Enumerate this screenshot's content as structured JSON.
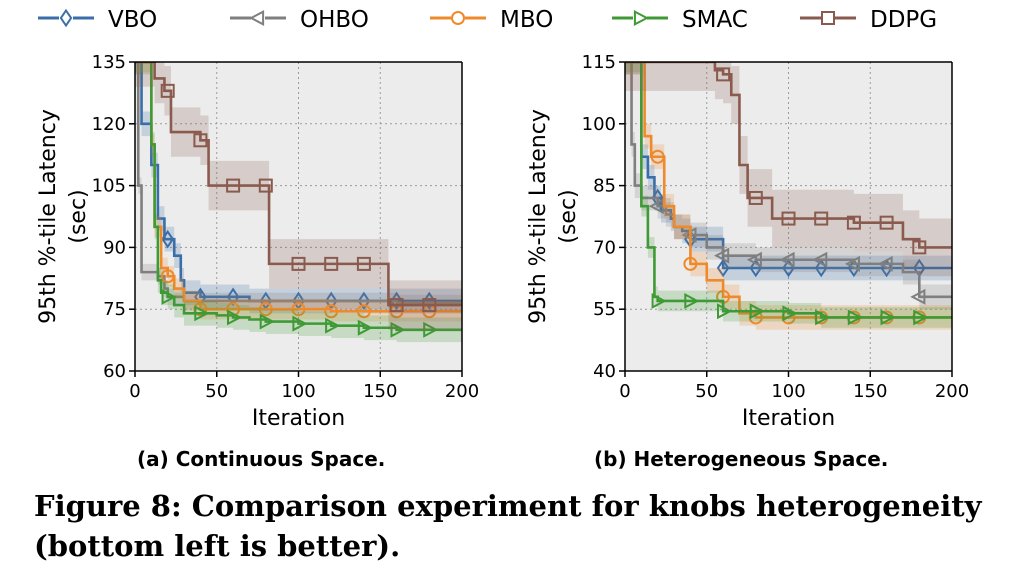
{
  "legend": [
    {
      "name": "VBO",
      "color": "#3a6ea8",
      "marker": "diamond"
    },
    {
      "name": "OHBO",
      "color": "#7f7f7f",
      "marker": "triangle-left"
    },
    {
      "name": "MBO",
      "color": "#ef8a2b",
      "marker": "circle"
    },
    {
      "name": "SMAC",
      "color": "#3f9a36",
      "marker": "triangle-right"
    },
    {
      "name": "DDPG",
      "color": "#8a5a4e",
      "marker": "square"
    }
  ],
  "caption": {
    "sub_a": "(a) Continuous Space.",
    "sub_b": "(b) Heterogeneous Space.",
    "figure": "Figure 8: Comparison experiment for knobs heterogeneity (bottom left is better)."
  },
  "chart_data": [
    {
      "type": "line",
      "xlabel": "Iteration",
      "ylabel": [
        "95th %-tile Latency",
        "(sec)"
      ],
      "xlim": [
        0,
        200
      ],
      "ylim": [
        60,
        135
      ],
      "xticks": [
        0,
        50,
        100,
        150,
        200
      ],
      "yticks": [
        60,
        75,
        90,
        105,
        120,
        135
      ],
      "grid": true,
      "series": [
        {
          "name": "VBO",
          "color": "#3a6ea8",
          "marker": "diamond",
          "x": [
            0,
            4,
            10,
            14,
            18,
            20,
            24,
            28,
            30,
            40,
            50,
            60,
            70,
            80,
            100,
            120,
            140,
            160,
            180,
            200
          ],
          "y": [
            135,
            120,
            110,
            97,
            92,
            92,
            88,
            82,
            79,
            78,
            78,
            78,
            77,
            77,
            77,
            77,
            77,
            77,
            77,
            77
          ],
          "band": 3,
          "markers_x": [
            20,
            40,
            60,
            80,
            100,
            120,
            140,
            160,
            180
          ]
        },
        {
          "name": "OHBO",
          "color": "#7f7f7f",
          "marker": "triangle-left",
          "x": [
            0,
            2,
            4,
            10,
            14,
            18,
            20,
            30,
            40,
            60,
            80,
            100,
            150,
            160,
            200
          ],
          "y": [
            135,
            105,
            84,
            84,
            83,
            80,
            78,
            77,
            77,
            77,
            77,
            77,
            77,
            76.5,
            76.5
          ],
          "band": 2,
          "markers_x": []
        },
        {
          "name": "MBO",
          "color": "#ef8a2b",
          "marker": "circle",
          "x": [
            0,
            10,
            12,
            16,
            20,
            24,
            30,
            40,
            60,
            80,
            100,
            120,
            140,
            160,
            180,
            200
          ],
          "y": [
            135,
            115,
            95,
            85,
            83,
            80,
            77,
            75,
            75,
            75,
            75,
            74.5,
            74.5,
            74.5,
            74.5,
            74.5
          ],
          "band": 2.5,
          "markers_x": [
            20,
            40,
            60,
            80,
            100,
            120,
            140,
            160,
            180
          ]
        },
        {
          "name": "SMAC",
          "color": "#3f9a36",
          "marker": "triangle-right",
          "x": [
            0,
            10,
            12,
            14,
            16,
            20,
            24,
            30,
            40,
            50,
            60,
            70,
            80,
            100,
            120,
            140,
            160,
            180,
            200
          ],
          "y": [
            135,
            115,
            95,
            82,
            79,
            78,
            76,
            74,
            74,
            73.5,
            73,
            72.5,
            72,
            71.5,
            71,
            70.5,
            70,
            70,
            70
          ],
          "band": 3,
          "markers_x": [
            20,
            40,
            60,
            80,
            100,
            120,
            140,
            160,
            180
          ]
        },
        {
          "name": "DDPG",
          "color": "#8a5a4e",
          "marker": "square",
          "x": [
            0,
            12,
            18,
            22,
            30,
            40,
            45,
            60,
            70,
            80,
            82,
            100,
            130,
            140,
            155,
            160,
            200
          ],
          "y": [
            135,
            131,
            128,
            118,
            118,
            116,
            105,
            105,
            105,
            105,
            86,
            86,
            86,
            86,
            76,
            76,
            76
          ],
          "band": 6,
          "markers_x": [
            20,
            40,
            60,
            80,
            100,
            120,
            140,
            160,
            180
          ]
        }
      ]
    },
    {
      "type": "line",
      "xlabel": "Iteration",
      "ylabel": [
        "95th %-tile Latency",
        "(sec)"
      ],
      "xlim": [
        0,
        200
      ],
      "ylim": [
        40,
        115
      ],
      "xticks": [
        0,
        50,
        100,
        150,
        200
      ],
      "yticks": [
        40,
        55,
        70,
        85,
        100,
        115
      ],
      "grid": true,
      "series": [
        {
          "name": "VBO",
          "color": "#3a6ea8",
          "marker": "diamond",
          "x": [
            0,
            10,
            14,
            18,
            22,
            28,
            30,
            35,
            40,
            50,
            55,
            60,
            70,
            80,
            100,
            120,
            140,
            160,
            180,
            200
          ],
          "y": [
            115,
            92,
            87,
            82,
            79,
            77,
            75,
            74,
            72,
            72,
            72,
            65,
            65,
            65,
            65,
            65,
            65,
            65,
            65,
            65
          ],
          "band": 3,
          "markers_x": [
            20,
            40,
            60,
            80,
            100,
            120,
            140,
            160,
            180
          ]
        },
        {
          "name": "OHBO",
          "color": "#7f7f7f",
          "marker": "triangle-left",
          "x": [
            0,
            4,
            6,
            10,
            20,
            25,
            30,
            40,
            50,
            60,
            80,
            100,
            120,
            140,
            150,
            170,
            180,
            200
          ],
          "y": [
            115,
            95,
            85,
            82,
            80,
            78,
            75,
            73,
            70,
            68,
            67,
            67,
            67,
            66,
            66,
            64,
            58,
            58
          ],
          "band": 3,
          "markers_x": [
            20,
            40,
            60,
            80,
            100,
            120,
            140,
            160,
            180
          ]
        },
        {
          "name": "MBO",
          "color": "#ef8a2b",
          "marker": "circle",
          "x": [
            0,
            12,
            16,
            20,
            24,
            30,
            40,
            50,
            60,
            70,
            80,
            100,
            120,
            140,
            160,
            180,
            200
          ],
          "y": [
            115,
            97,
            92,
            92,
            80,
            75,
            66,
            62,
            58,
            54,
            53,
            53,
            53,
            53,
            53,
            53,
            53
          ],
          "band": 3,
          "markers_x": [
            20,
            40,
            60,
            80,
            100,
            120,
            140,
            160,
            180
          ]
        },
        {
          "name": "SMAC",
          "color": "#3f9a36",
          "marker": "triangle-right",
          "x": [
            0,
            10,
            14,
            18,
            20,
            40,
            58,
            60,
            80,
            100,
            120,
            140,
            160,
            180,
            200
          ],
          "y": [
            115,
            80,
            70,
            58,
            57,
            57,
            57,
            54.5,
            54.5,
            54,
            53,
            53,
            53,
            53,
            53
          ],
          "band": 2.5,
          "markers_x": [
            20,
            40,
            60,
            80,
            100,
            120,
            140,
            160,
            180
          ]
        },
        {
          "name": "DDPG",
          "color": "#8a5a4e",
          "marker": "square",
          "x": [
            0,
            40,
            55,
            60,
            65,
            70,
            75,
            80,
            90,
            100,
            120,
            140,
            160,
            170,
            180,
            200
          ],
          "y": [
            115,
            115,
            113,
            112,
            107,
            90,
            82,
            82,
            77,
            77,
            77,
            76,
            76,
            72,
            70,
            70
          ],
          "band": 7,
          "markers_x": [
            60,
            80,
            100,
            120,
            140,
            160,
            180
          ]
        }
      ]
    }
  ]
}
